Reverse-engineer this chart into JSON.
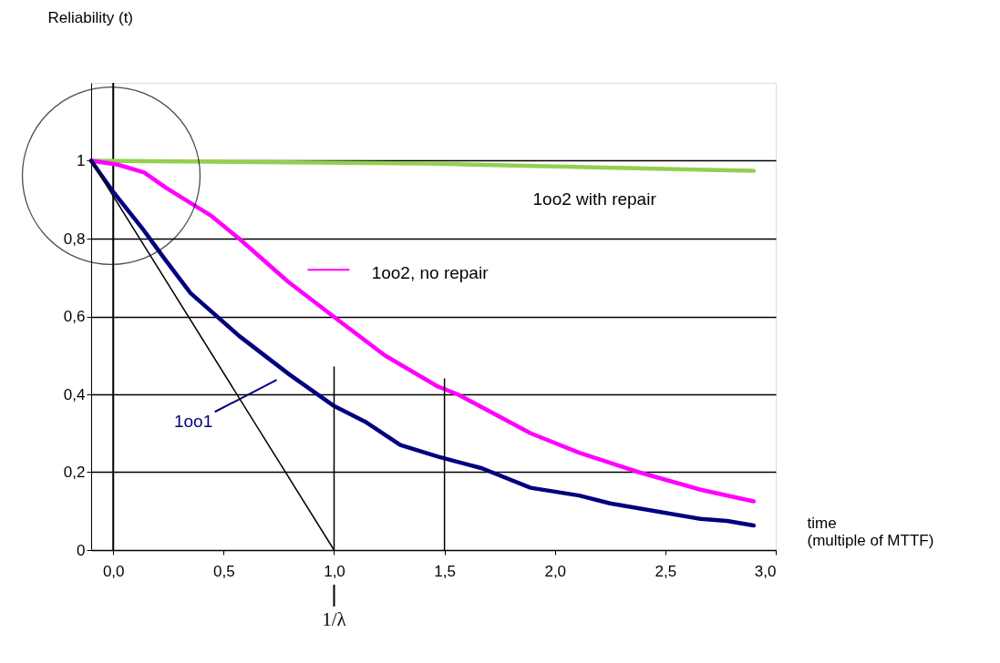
{
  "chart_data": {
    "type": "line",
    "ylabel": "Reliability (t)",
    "xlabel": "time\n(multiple of MTTF)",
    "xlim": [
      -0.1,
      3.0
    ],
    "ylim": [
      0,
      1.2
    ],
    "xticks": [
      {
        "value": 0,
        "label": "0,0"
      },
      {
        "value": 0.5,
        "label": "0,5"
      },
      {
        "value": 1.0,
        "label": "1,0"
      },
      {
        "value": 1.5,
        "label": "1,5"
      },
      {
        "value": 2.0,
        "label": "2,0"
      },
      {
        "value": 2.5,
        "label": "2,5"
      },
      {
        "value": 3.0,
        "label": "3,0"
      }
    ],
    "yticks": [
      0,
      {
        "value": 0.2,
        "label": "0,2"
      },
      {
        "value": 0.4,
        "label": "0,4"
      },
      {
        "value": 0.6,
        "label": "0,6"
      },
      {
        "value": 0.8,
        "label": "0,8"
      },
      1
    ],
    "grid": "y",
    "series": [
      {
        "name": "1oo2 with repair",
        "color": "#92d050",
        "x": [
          -0.1,
          1.42,
          2.9
        ],
        "values": [
          1.0,
          0.993,
          0.974
        ]
      },
      {
        "name": "1oo2, no repair",
        "color": "#ff00ff",
        "x": [
          -0.1,
          0.02,
          0.14,
          0.24,
          0.44,
          0.57,
          0.79,
          1.02,
          1.23,
          1.47,
          1.56,
          1.89,
          2.11,
          2.38,
          2.66,
          2.9
        ],
        "values": [
          1.0,
          0.99,
          0.97,
          0.93,
          0.86,
          0.8,
          0.69,
          0.59,
          0.5,
          0.42,
          0.4,
          0.3,
          0.25,
          0.2,
          0.155,
          0.125
        ]
      },
      {
        "name": "1oo1",
        "color": "#000080",
        "x": [
          -0.1,
          0.0,
          0.14,
          0.23,
          0.35,
          0.57,
          0.8,
          1.0,
          1.14,
          1.3,
          1.47,
          1.67,
          1.89,
          2.11,
          2.25,
          2.66,
          2.78,
          2.9
        ],
        "values": [
          1.0,
          0.92,
          0.82,
          0.75,
          0.66,
          0.55,
          0.45,
          0.37,
          0.33,
          0.27,
          0.24,
          0.21,
          0.16,
          0.14,
          0.12,
          0.08,
          0.075,
          0.063
        ]
      },
      {
        "color": "#000000",
        "x": [
          -0.1,
          1.0
        ],
        "values": [
          1.0,
          0
        ]
      },
      {
        "color": "#000000",
        "x": [
          1.0,
          1.0
        ],
        "values": [
          0,
          0.47
        ]
      },
      {
        "color": "#000000",
        "x": [
          1.5,
          1.5
        ],
        "values": [
          0,
          0.44
        ]
      }
    ],
    "ref_lines": [
      {
        "axis": "x",
        "value": 0.0,
        "color": "#000000"
      }
    ],
    "annotations": [
      {
        "text": "1/λ",
        "x": 1.0
      }
    ]
  }
}
